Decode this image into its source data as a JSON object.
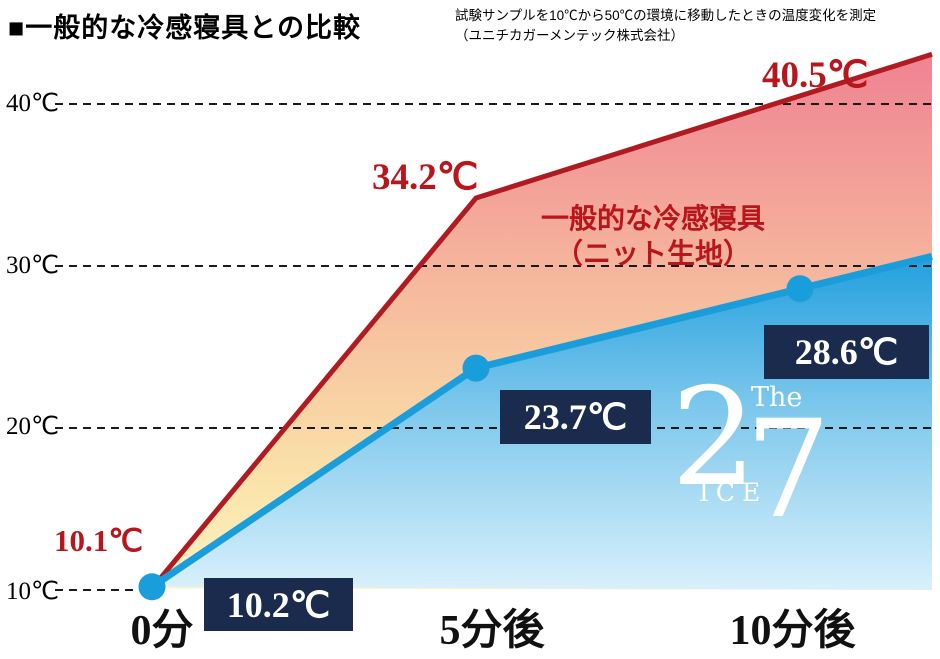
{
  "header": {
    "title": "■一般的な冷感寝具との比較",
    "note_line1": "試験サンプルを10℃から50℃の環境に移動したときの温度変化を測定",
    "note_line2": "（ユニチカガーメンテック株式会社）"
  },
  "chart_data": {
    "type": "line",
    "title": "■一般的な冷感寝具との比較",
    "subtitle": [
      "試験サンプルを10℃から50℃の環境に移動したときの温度変化を測定",
      "（ユニチカガーメンテック株式会社）"
    ],
    "x": [
      0,
      5,
      10
    ],
    "x_tick_labels": [
      "0分",
      "5分後",
      "10分後"
    ],
    "y_ticks": [
      10,
      20,
      30,
      40
    ],
    "y_tick_labels": [
      "10℃",
      "20℃",
      "30℃",
      "40℃"
    ],
    "ylim": [
      10,
      43
    ],
    "grid": "horizontal-dashed",
    "legend_position": "in-plot-annotations",
    "series": [
      {
        "name": "一般的な冷感寝具（ニット生地）",
        "color": "#b01b21",
        "values": [
          10.1,
          34.2,
          40.5
        ],
        "point_labels": [
          "10.1℃",
          "34.2℃",
          "40.5℃"
        ]
      },
      {
        "name": "The 27 ICE",
        "color": "#1a9ddb",
        "values": [
          10.2,
          23.7,
          28.6
        ],
        "point_labels": [
          "10.2℃",
          "23.7℃",
          "28.6℃"
        ]
      }
    ],
    "annotations": {
      "series1_label_line1": "一般的な冷感寝具",
      "series1_label_line2": "（ニット生地）",
      "logo": {
        "the": "The",
        "digit2": "2",
        "digit7": "7",
        "ice": "ICE"
      }
    }
  },
  "colors": {
    "red_line": "#b01b21",
    "red_label": "#b7161d",
    "blue_line": "#1a9ddb",
    "navy_box": "#1b2b4e",
    "grid": "#1a1a1a",
    "red_area_top": "#ef8292",
    "red_area_mid": "#f6bb9e",
    "red_area_low": "#fae3a9",
    "red_area_bottom": "#fdf2c4",
    "blue_area_top": "#219fdd",
    "blue_area_mid": "#7cc7ec",
    "blue_area_bottom": "#d9f0fb"
  }
}
